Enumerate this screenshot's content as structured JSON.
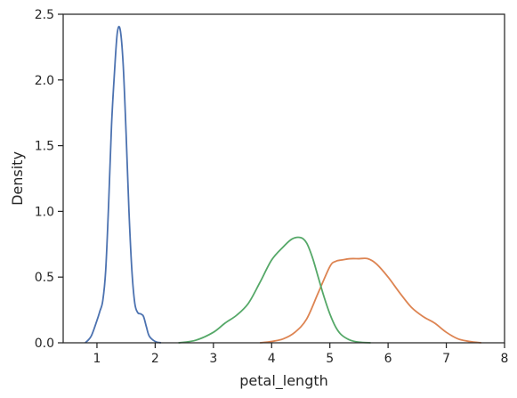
{
  "chart_data": {
    "type": "line",
    "title": "",
    "xlabel": "petal_length",
    "ylabel": "Density",
    "xlim": [
      0.42,
      8.0
    ],
    "ylim": [
      0.0,
      2.5
    ],
    "xticks": [
      1,
      2,
      3,
      4,
      5,
      6,
      7,
      8
    ],
    "yticks": [
      0.0,
      0.5,
      1.0,
      1.5,
      2.0,
      2.5
    ],
    "xtick_labels": [
      "1",
      "2",
      "3",
      "4",
      "5",
      "6",
      "7",
      "8"
    ],
    "ytick_labels": [
      "0.0",
      "0.5",
      "1.0",
      "1.5",
      "2.0",
      "2.5"
    ],
    "grid": false,
    "legend": "none",
    "series": [
      {
        "color": "#4c72b0",
        "x": [
          0.8,
          0.9,
          1.0,
          1.05,
          1.1,
          1.15,
          1.2,
          1.25,
          1.3,
          1.35,
          1.4,
          1.45,
          1.5,
          1.55,
          1.6,
          1.65,
          1.7,
          1.75,
          1.8,
          1.85,
          1.9,
          2.0,
          2.1
        ],
        "y": [
          0.0,
          0.05,
          0.17,
          0.24,
          0.32,
          0.55,
          1.05,
          1.65,
          2.05,
          2.36,
          2.38,
          2.12,
          1.6,
          1.0,
          0.55,
          0.3,
          0.23,
          0.22,
          0.2,
          0.12,
          0.05,
          0.01,
          0.0
        ]
      },
      {
        "color": "#dd8452",
        "x": [
          3.8,
          4.0,
          4.2,
          4.4,
          4.6,
          4.8,
          5.0,
          5.1,
          5.2,
          5.35,
          5.5,
          5.65,
          5.8,
          6.0,
          6.2,
          6.4,
          6.6,
          6.8,
          7.0,
          7.2,
          7.4,
          7.6
        ],
        "y": [
          0.0,
          0.01,
          0.03,
          0.08,
          0.18,
          0.38,
          0.58,
          0.62,
          0.63,
          0.64,
          0.64,
          0.64,
          0.6,
          0.5,
          0.38,
          0.27,
          0.2,
          0.15,
          0.08,
          0.03,
          0.01,
          0.0
        ]
      },
      {
        "color": "#55a868",
        "x": [
          2.4,
          2.7,
          3.0,
          3.2,
          3.4,
          3.6,
          3.8,
          4.0,
          4.2,
          4.35,
          4.5,
          4.6,
          4.7,
          4.8,
          4.9,
          5.0,
          5.1,
          5.2,
          5.35,
          5.5,
          5.7
        ],
        "y": [
          0.0,
          0.02,
          0.08,
          0.15,
          0.21,
          0.3,
          0.46,
          0.63,
          0.73,
          0.79,
          0.8,
          0.76,
          0.65,
          0.5,
          0.35,
          0.22,
          0.12,
          0.06,
          0.02,
          0.005,
          0.0
        ]
      }
    ]
  }
}
